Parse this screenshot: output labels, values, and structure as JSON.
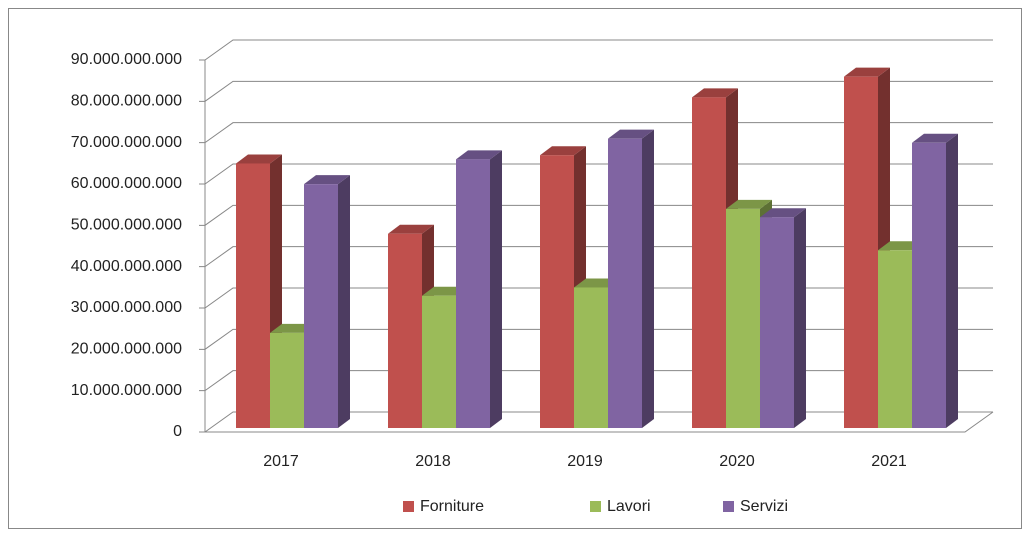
{
  "chart_data": {
    "type": "bar3d",
    "categories": [
      "2017",
      "2018",
      "2019",
      "2020",
      "2021"
    ],
    "series": [
      {
        "name": "Forniture",
        "color": "#c0504d",
        "values": [
          64000000000,
          47000000000,
          66000000000,
          80000000000,
          85000000000
        ]
      },
      {
        "name": "Lavori",
        "color": "#9bbb59",
        "values": [
          23000000000,
          32000000000,
          34000000000,
          53000000000,
          43000000000
        ]
      },
      {
        "name": "Servizi",
        "color": "#8064a2",
        "values": [
          59000000000,
          65000000000,
          70000000000,
          51000000000,
          69000000000
        ]
      }
    ],
    "ylim": [
      0,
      90000000000
    ],
    "yticks": [
      0,
      {
        "value": 10000000000,
        "label": "10.000.000.000"
      },
      {
        "value": 20000000000,
        "label": "20.000.000.000"
      },
      {
        "value": 30000000000,
        "label": "30.000.000.000"
      },
      {
        "value": 40000000000,
        "label": "40.000.000.000"
      },
      {
        "value": 50000000000,
        "label": "50.000.000.000"
      },
      {
        "value": 60000000000,
        "label": "60.000.000.000"
      },
      {
        "value": 70000000000,
        "label": "70.000.000.000"
      },
      {
        "value": 80000000000,
        "label": "80.000.000.000"
      },
      {
        "value": 90000000000,
        "label": "90.000.000.000"
      }
    ],
    "grid": true,
    "legend": "bottom"
  }
}
